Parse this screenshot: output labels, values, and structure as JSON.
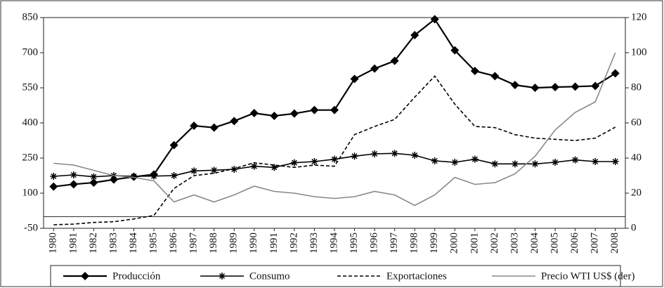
{
  "chart_data": {
    "type": "line",
    "categories": [
      "1980",
      "1981",
      "1982",
      "1983",
      "1984",
      "1985",
      "1986",
      "1987",
      "1988",
      "1989",
      "1990",
      "1991",
      "1992",
      "1993",
      "1994",
      "1995",
      "1996",
      "1997",
      "1998",
      "1999",
      "2000",
      "2001",
      "2002",
      "2003",
      "2004",
      "2005",
      "2006",
      "2007",
      "2008"
    ],
    "ylim": [
      -50,
      850
    ],
    "yticks": [
      -50,
      100,
      250,
      400,
      550,
      700,
      850
    ],
    "y2lim": [
      0,
      120
    ],
    "y2ticks": [
      0,
      20,
      40,
      60,
      80,
      100,
      120
    ],
    "series": [
      {
        "name": "Producción",
        "color": "#000000",
        "marker": "diamond",
        "dash": "solid",
        "values": [
          128,
          138,
          145,
          158,
          170,
          180,
          305,
          388,
          380,
          408,
          442,
          430,
          440,
          455,
          455,
          588,
          632,
          665,
          775,
          843,
          710,
          622,
          600,
          562,
          550,
          553,
          555,
          558,
          612
        ]
      },
      {
        "name": "Consumo",
        "color": "#000000",
        "marker": "asterisk",
        "dash": "solid",
        "values": [
          172,
          178,
          170,
          175,
          172,
          173,
          175,
          195,
          198,
          202,
          215,
          210,
          230,
          235,
          245,
          258,
          268,
          270,
          262,
          238,
          232,
          245,
          225,
          225,
          225,
          232,
          242,
          235,
          235
        ]
      },
      {
        "name": "Exportaciones",
        "color": "#000000",
        "marker": "none",
        "dash": "dashed",
        "values": [
          -35,
          -32,
          -25,
          -22,
          -10,
          5,
          120,
          175,
          185,
          205,
          230,
          220,
          210,
          220,
          215,
          350,
          385,
          415,
          510,
          600,
          480,
          385,
          380,
          350,
          335,
          330,
          325,
          335,
          382
        ]
      },
      {
        "name": "Precio WTI US$ (der)",
        "color": "#888888",
        "marker": "none",
        "dash": "solid",
        "axis": "y2",
        "values": [
          37,
          36,
          33,
          30,
          29,
          27,
          15,
          19,
          15,
          19,
          24,
          21,
          20,
          18,
          17,
          18,
          21,
          19,
          13,
          19,
          29,
          25,
          26,
          31,
          41,
          56,
          66,
          72,
          100
        ]
      }
    ],
    "legend": "bottom"
  }
}
